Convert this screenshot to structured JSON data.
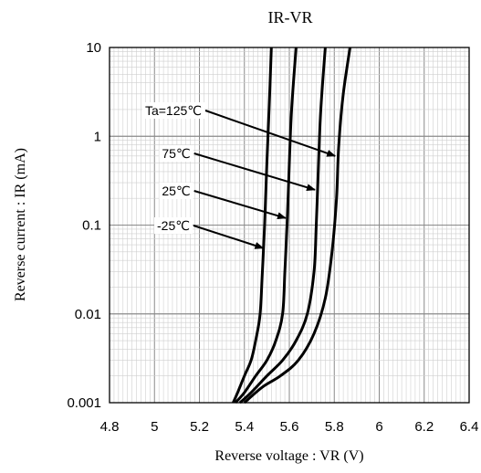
{
  "chart_data": {
    "type": "line",
    "title": "IR-VR",
    "xlabel": "Reverse voltage : VR (V)",
    "ylabel": "Reverse current : IR (mA)",
    "x_scale": "linear",
    "y_scale": "log",
    "xlim": [
      4.8,
      6.4
    ],
    "ylim": [
      0.001,
      10
    ],
    "x_ticks": [
      "4.8",
      "5",
      "5.2",
      "5.4",
      "5.6",
      "5.8",
      "6",
      "6.2",
      "6.4"
    ],
    "y_ticks": [
      "0.001",
      "0.01",
      "0.1",
      "1",
      "10"
    ],
    "grid": true,
    "line_color": "#000000",
    "series": [
      {
        "name": "-25℃",
        "points": [
          [
            5.35,
            0.001
          ],
          [
            5.37,
            0.0013
          ],
          [
            5.4,
            0.002
          ],
          [
            5.43,
            0.003
          ],
          [
            5.45,
            0.005
          ],
          [
            5.47,
            0.01
          ],
          [
            5.48,
            0.03
          ],
          [
            5.49,
            0.1
          ],
          [
            5.5,
            0.5
          ],
          [
            5.51,
            2
          ],
          [
            5.52,
            10
          ]
        ]
      },
      {
        "name": "25℃",
        "points": [
          [
            5.36,
            0.001
          ],
          [
            5.4,
            0.0013
          ],
          [
            5.45,
            0.002
          ],
          [
            5.5,
            0.003
          ],
          [
            5.54,
            0.005
          ],
          [
            5.57,
            0.01
          ],
          [
            5.58,
            0.03
          ],
          [
            5.59,
            0.1
          ],
          [
            5.6,
            0.5
          ],
          [
            5.61,
            2
          ],
          [
            5.63,
            10
          ]
        ]
      },
      {
        "name": "75℃",
        "points": [
          [
            5.38,
            0.001
          ],
          [
            5.43,
            0.0013
          ],
          [
            5.5,
            0.002
          ],
          [
            5.57,
            0.003
          ],
          [
            5.63,
            0.005
          ],
          [
            5.68,
            0.01
          ],
          [
            5.71,
            0.03
          ],
          [
            5.72,
            0.1
          ],
          [
            5.73,
            0.5
          ],
          [
            5.74,
            2
          ],
          [
            5.76,
            10
          ]
        ]
      },
      {
        "name": "Ta=125℃",
        "points": [
          [
            5.4,
            0.001
          ],
          [
            5.48,
            0.0015
          ],
          [
            5.56,
            0.002
          ],
          [
            5.64,
            0.003
          ],
          [
            5.71,
            0.006
          ],
          [
            5.76,
            0.015
          ],
          [
            5.79,
            0.05
          ],
          [
            5.81,
            0.2
          ],
          [
            5.82,
            0.8
          ],
          [
            5.84,
            3
          ],
          [
            5.87,
            10
          ]
        ]
      }
    ],
    "annotations": [
      {
        "text": "Ta=125℃",
        "at": [
          5.82,
          0.6
        ]
      },
      {
        "text": "75℃",
        "at": [
          5.73,
          0.25
        ]
      },
      {
        "text": "25℃",
        "at": [
          5.6,
          0.12
        ]
      },
      {
        "text": "-25℃",
        "at": [
          5.5,
          0.055
        ]
      }
    ]
  }
}
